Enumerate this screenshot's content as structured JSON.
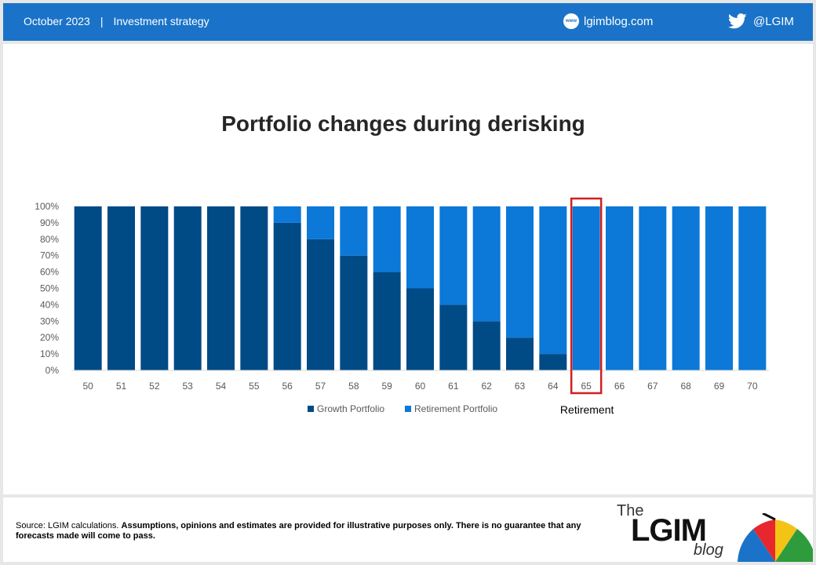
{
  "header": {
    "date": "October 2023",
    "separator": "|",
    "section": "Investment strategy",
    "website_icon_text": "www",
    "website": "lgimblog.com",
    "twitter_handle": "@LGIM"
  },
  "colors": {
    "header_bg": "#1a73c8",
    "growth": "#004a86",
    "retirement": "#0c78d8",
    "highlight": "#d0201f"
  },
  "icons": {
    "website": "globe-www-icon",
    "twitter": "twitter-bird-icon",
    "logo": "umbrella-icon"
  },
  "footer": {
    "source_plain": "Source: LGIM calculations. ",
    "source_bold": "Assumptions, opinions  and estimates are provided  for illustrative purposes only.  There is no guarantee that any forecasts made will come to pass.",
    "logo_the": "The",
    "logo_name": "LGIM",
    "logo_blog": "blog"
  },
  "chart_data": {
    "type": "bar",
    "stacked": true,
    "title": "Portfolio changes during derisking",
    "categories": [
      "50",
      "51",
      "52",
      "53",
      "54",
      "55",
      "56",
      "57",
      "58",
      "59",
      "60",
      "61",
      "62",
      "63",
      "64",
      "65",
      "66",
      "67",
      "68",
      "69",
      "70"
    ],
    "series": [
      {
        "name": "Growth Portfolio",
        "values": [
          100,
          100,
          100,
          100,
          100,
          100,
          90,
          80,
          70,
          60,
          50,
          40,
          30,
          20,
          10,
          0,
          0,
          0,
          0,
          0,
          0
        ]
      },
      {
        "name": "Retirement Portfolio",
        "values": [
          0,
          0,
          0,
          0,
          0,
          0,
          10,
          20,
          30,
          40,
          50,
          60,
          70,
          80,
          90,
          100,
          100,
          100,
          100,
          100,
          100
        ]
      }
    ],
    "yticks": [
      "0%",
      "10%",
      "20%",
      "30%",
      "40%",
      "50%",
      "60%",
      "70%",
      "80%",
      "90%",
      "100%"
    ],
    "ylim": [
      0,
      100
    ],
    "grid": false,
    "legend_position": "bottom",
    "highlight_category": "65",
    "annotation": "Retirement"
  }
}
